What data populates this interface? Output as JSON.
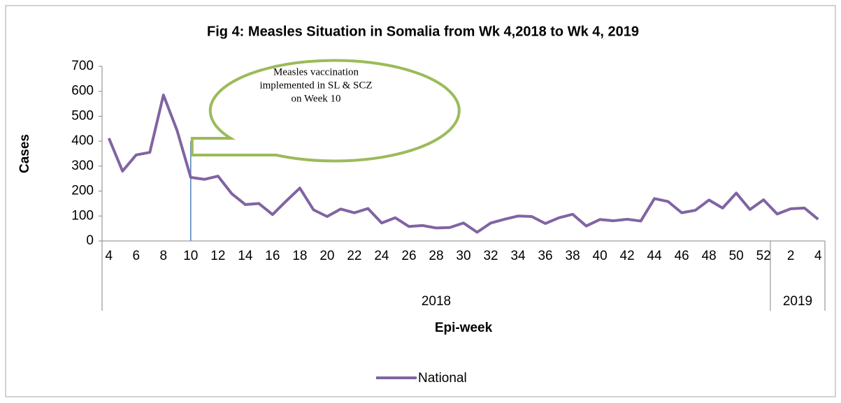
{
  "chart_data": {
    "type": "line",
    "title": "Fig 4: Measles Situation in Somalia from Wk 4,2018 to Wk 4, 2019",
    "y_label": "Cases",
    "x_label": "Epi-week",
    "categories": [
      "4",
      null,
      "6",
      null,
      "8",
      null,
      "10",
      null,
      "12",
      null,
      "14",
      null,
      "16",
      null,
      "18",
      null,
      "20",
      null,
      "22",
      null,
      "24",
      null,
      "26",
      null,
      "28",
      null,
      "30",
      null,
      "32",
      null,
      "34",
      null,
      "36",
      null,
      "38",
      null,
      "40",
      null,
      "42",
      null,
      "44",
      null,
      "46",
      null,
      "48",
      null,
      "50",
      null,
      "52",
      null,
      "2",
      null,
      "4"
    ],
    "groups": [
      {
        "name": "2018",
        "start": 0,
        "end": 48
      },
      {
        "name": "2019",
        "start": 49,
        "end": 52
      }
    ],
    "series": [
      {
        "name": "National",
        "color": "#8064a2",
        "values": [
          412,
          280,
          345,
          355,
          585,
          443,
          255,
          247,
          260,
          190,
          146,
          150,
          106,
          160,
          212,
          125,
          98,
          128,
          113,
          130,
          72,
          93,
          58,
          62,
          52,
          54,
          72,
          35,
          72,
          87,
          100,
          98,
          70,
          93,
          107,
          60,
          86,
          81,
          87,
          80,
          170,
          158,
          113,
          123,
          164,
          132,
          192,
          126,
          165,
          108,
          129,
          132,
          87
        ]
      }
    ],
    "ylim": [
      0,
      700
    ],
    "yticks": [
      0,
      100,
      200,
      300,
      400,
      500,
      600,
      700
    ],
    "annotation": {
      "lines": [
        "Measles vaccination",
        "implemented in SL & SCZ",
        "on Week 10"
      ],
      "category": "10",
      "color": "#9bbb59"
    },
    "legend": "bottom"
  }
}
